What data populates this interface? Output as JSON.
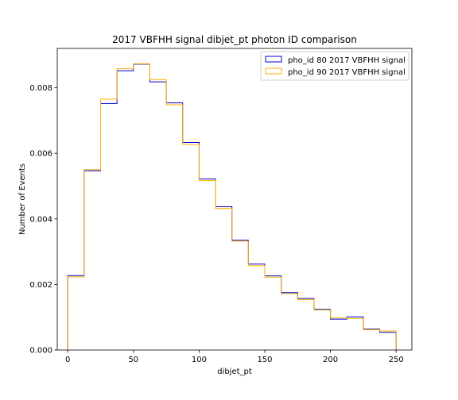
{
  "chart_data": {
    "type": "line",
    "drawstyle": "step",
    "title": "2017 VBFHH signal dibjet_pt photon ID comparison",
    "xlabel": "dibjet_pt",
    "ylabel": "Number of Events",
    "xlim": [
      -8,
      262
    ],
    "ylim": [
      0,
      0.0092
    ],
    "xticks": [
      0,
      50,
      100,
      150,
      200,
      250
    ],
    "xtick_labels": [
      "0",
      "50",
      "100",
      "150",
      "200",
      "250"
    ],
    "yticks": [
      0,
      0.002,
      0.004,
      0.006,
      0.008
    ],
    "ytick_labels": [
      "0.000",
      "0.002",
      "0.004",
      "0.006",
      "0.008"
    ],
    "grid": false,
    "legend_position": "top-right",
    "bin_edges": [
      0,
      12.5,
      25,
      37.5,
      50,
      62.5,
      75,
      87.5,
      100,
      112.5,
      125,
      137.5,
      150,
      162.5,
      175,
      187.5,
      200,
      212.5,
      225,
      237.5,
      250
    ],
    "series": [
      {
        "name": "pho_id 80 2017 VBFHH signal",
        "color": "#0000cc",
        "values": [
          0.00227,
          0.00547,
          0.00752,
          0.00852,
          0.00872,
          0.00818,
          0.00754,
          0.00633,
          0.00522,
          0.00437,
          0.00335,
          0.00262,
          0.00226,
          0.00175,
          0.00157,
          0.00124,
          0.00094,
          0.00101,
          0.00064,
          0.00054
        ]
      },
      {
        "name": "pho_id 90 2017 VBFHH signal",
        "color": "#ffb000",
        "values": [
          0.00223,
          0.0055,
          0.00765,
          0.00858,
          0.00873,
          0.00825,
          0.00748,
          0.00627,
          0.00517,
          0.00432,
          0.00332,
          0.00257,
          0.00222,
          0.00172,
          0.00154,
          0.00122,
          0.00098,
          0.00096,
          0.00062,
          0.00058
        ]
      }
    ]
  }
}
